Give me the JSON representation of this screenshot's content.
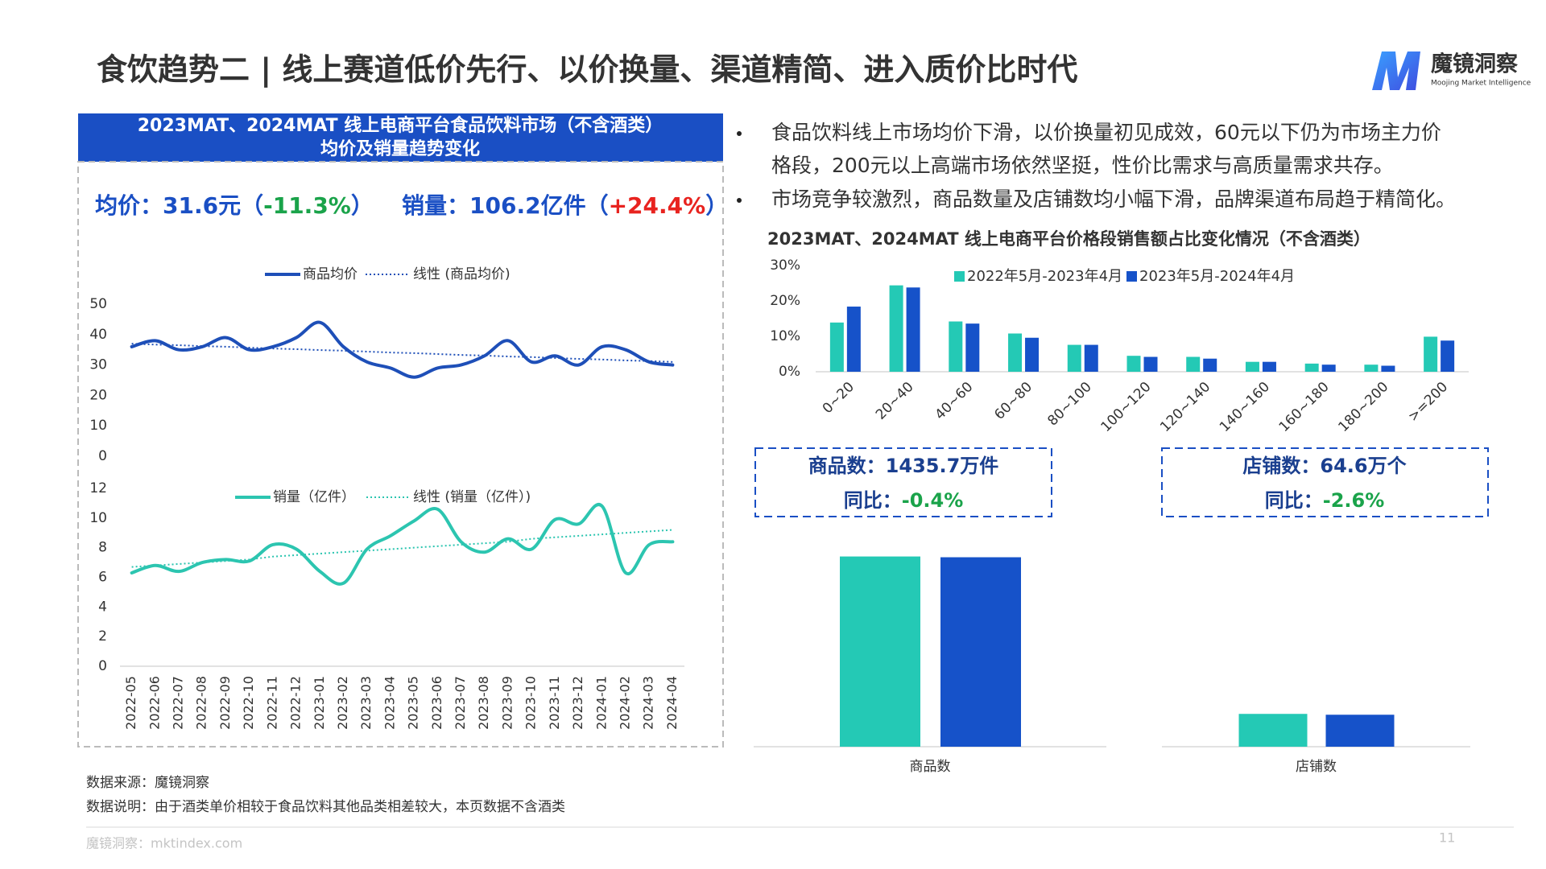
{
  "header": {
    "title": "食饮趋势二 | 线上赛道低价先行、以价换量、渠道精简、进入质价比时代",
    "logo": "魔镜洞察",
    "logo_sub": "Moojing Market Intelligence"
  },
  "left_panel": {
    "title_lines": [
      "2023MAT、2024MAT 线上电商平台食品饮料市场（不含酒类）",
      "均价及销量趋势变化"
    ],
    "stats": [
      {
        "prefix": "均价：31.6元（",
        "change": "-11.3%",
        "suffix": "）",
        "change_color": "#1aa34a"
      },
      {
        "prefix": "销量：106.2亿件（",
        "change": "+24.4%",
        "suffix": "）",
        "change_color": "#e8231f"
      }
    ]
  },
  "bullets": [
    {
      "lines": [
        "食品饮料线上市场均价下滑，以价换量初见成效，60元以下仍为市场主力价",
        "格段，200元以上高端市场依然坚挺，性价比需求与高质量需求共存。"
      ]
    },
    {
      "lines": [
        "市场竞争较激烈，商品数量及店铺数均小幅下滑，品牌渠道布局趋于精简化。"
      ]
    }
  ],
  "kpis": [
    {
      "label": "商品数：1435.7万件",
      "yoy_label": "同比：",
      "yoy": "-0.4%"
    },
    {
      "label": "店铺数：64.6万个",
      "yoy_label": "同比：",
      "yoy": "-2.6%"
    }
  ],
  "footer": {
    "source": "数据来源：魔镜洞察",
    "note": "数据说明：由于酒类单价相较于食品饮料其他品类相差较大，本页数据不含酒类",
    "site": "魔镜洞察：mktindex.com",
    "page": "11"
  },
  "chart_data": [
    {
      "type": "line",
      "ylim": [
        0,
        50
      ],
      "yticks": [
        0,
        10,
        20,
        30,
        40,
        50
      ],
      "grid": false,
      "series": [
        {
          "name": "商品均价",
          "color": "#1e4fb8",
          "style": "solid",
          "values": [
            36,
            38,
            35,
            36,
            39,
            35,
            36,
            39,
            44,
            36,
            31,
            29,
            26,
            29,
            30,
            33,
            38,
            31,
            33,
            30,
            36,
            35,
            31,
            30
          ]
        },
        {
          "name": "线性 (商品均价)",
          "color": "#1e4fb8",
          "style": "dotted",
          "values": [
            37.0,
            36.7,
            36.5,
            36.2,
            36.0,
            35.7,
            35.4,
            35.2,
            34.9,
            34.7,
            34.4,
            34.1,
            33.9,
            33.6,
            33.3,
            33.1,
            32.8,
            32.6,
            32.3,
            32.0,
            31.8,
            31.5,
            31.3,
            31.0
          ]
        }
      ]
    },
    {
      "type": "line",
      "ylim": [
        0,
        12
      ],
      "yticks": [
        0,
        2,
        4,
        6,
        8,
        10,
        12
      ],
      "grid": false,
      "categories": [
        "2022-05",
        "2022-06",
        "2022-07",
        "2022-08",
        "2022-09",
        "2022-10",
        "2022-11",
        "2022-12",
        "2023-01",
        "2023-02",
        "2023-03",
        "2023-04",
        "2023-05",
        "2023-06",
        "2023-07",
        "2023-08",
        "2023-09",
        "2023-10",
        "2023-11",
        "2023-12",
        "2024-01",
        "2024-02",
        "2024-03",
        "2024-04"
      ],
      "series": [
        {
          "name": "销量（亿件）",
          "color": "#2cc5b0",
          "style": "solid",
          "values": [
            6.3,
            6.8,
            6.4,
            7.0,
            7.2,
            7.1,
            8.2,
            7.9,
            6.4,
            5.6,
            7.9,
            8.8,
            9.8,
            10.6,
            8.4,
            7.7,
            8.6,
            7.9,
            9.9,
            9.6,
            10.8,
            6.3,
            8.2,
            8.4
          ]
        },
        {
          "name": "线性 (销量（亿件）)",
          "color": "#2cc5b0",
          "style": "dotted",
          "values": [
            6.7,
            6.8,
            6.9,
            7.0,
            7.1,
            7.2,
            7.4,
            7.5,
            7.6,
            7.7,
            7.8,
            7.9,
            8.0,
            8.1,
            8.2,
            8.3,
            8.4,
            8.6,
            8.7,
            8.8,
            8.9,
            9.0,
            9.1,
            9.2
          ]
        }
      ]
    },
    {
      "type": "bar",
      "title": "2023MAT、2024MAT 线上电商平台价格段销售额占比变化情况（不含酒类）",
      "ylim": [
        0,
        30
      ],
      "yticks": [
        {
          "value": 0,
          "label": "0%"
        },
        {
          "value": 10,
          "label": "10%"
        },
        {
          "value": 20,
          "label": "20%"
        },
        {
          "value": 30,
          "label": "30%"
        }
      ],
      "categories": [
        "0~20",
        "20~40",
        "40~60",
        "60~80",
        "80~100",
        "100~120",
        "120~140",
        "140~160",
        "160~180",
        "180~200",
        ">=200"
      ],
      "series": [
        {
          "name": "2022年5月-2023年4月",
          "color": "#24c9b5",
          "values": [
            13.9,
            24.4,
            14.2,
            10.8,
            7.6,
            4.5,
            4.2,
            2.8,
            2.3,
            2.0,
            9.9
          ]
        },
        {
          "name": "2023年5月-2024年4月",
          "color": "#1652c9",
          "values": [
            18.4,
            23.8,
            13.6,
            9.6,
            7.6,
            4.2,
            3.7,
            2.8,
            2.0,
            1.7,
            8.8
          ]
        }
      ]
    },
    {
      "type": "bar",
      "ylim": [
        0,
        1500
      ],
      "categories": [
        "商品数"
      ],
      "series": [
        {
          "color": "#24c9b5",
          "values": [
            1441.5
          ]
        },
        {
          "color": "#1652c9",
          "values": [
            1435.7
          ]
        }
      ]
    },
    {
      "type": "bar",
      "ylim": [
        0,
        400
      ],
      "categories": [
        "店铺数"
      ],
      "series": [
        {
          "color": "#24c9b5",
          "values": [
            66.3
          ]
        },
        {
          "color": "#1652c9",
          "values": [
            64.6
          ]
        }
      ]
    }
  ]
}
